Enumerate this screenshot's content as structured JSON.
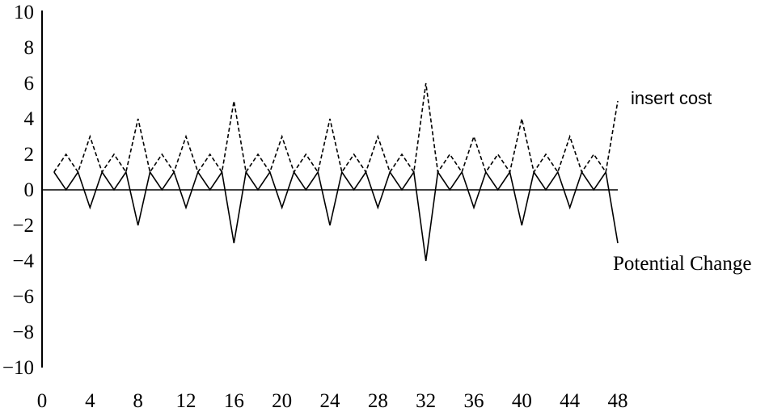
{
  "chart_data": {
    "type": "line",
    "title": "",
    "xlabel": "",
    "ylabel": "",
    "xlim": [
      0,
      48
    ],
    "ylim": [
      -10,
      10
    ],
    "x_ticks": [
      0,
      4,
      8,
      12,
      16,
      20,
      24,
      28,
      32,
      36,
      40,
      44,
      48
    ],
    "y_ticks": [
      10,
      8,
      6,
      4,
      2,
      0,
      -2,
      -4,
      -6,
      -8,
      -10
    ],
    "x_tick_labels": [
      "0",
      "4",
      "8",
      "12",
      "16",
      "20",
      "24",
      "28",
      "32",
      "36",
      "40",
      "44",
      "48"
    ],
    "y_tick_labels": [
      "10",
      "8",
      "6",
      "4",
      "2",
      "0",
      "−2",
      "−4",
      "−6",
      "−8",
      "−10"
    ],
    "grid": false,
    "legend": "none",
    "x": [
      1,
      2,
      3,
      4,
      5,
      6,
      7,
      8,
      9,
      10,
      11,
      12,
      13,
      14,
      15,
      16,
      17,
      18,
      19,
      20,
      21,
      22,
      23,
      24,
      25,
      26,
      27,
      28,
      29,
      30,
      31,
      32,
      33,
      34,
      35,
      36,
      37,
      38,
      39,
      40,
      41,
      42,
      43,
      44,
      45,
      46,
      47,
      48
    ],
    "series": [
      {
        "name": "insert cost",
        "style": "dashed",
        "values": [
          1,
          2,
          1,
          3,
          1,
          2,
          1,
          4,
          1,
          2,
          1,
          3,
          1,
          2,
          1,
          5,
          1,
          2,
          1,
          3,
          1,
          2,
          1,
          4,
          1,
          2,
          1,
          3,
          1,
          2,
          1,
          6,
          1,
          2,
          1,
          3,
          1,
          2,
          1,
          4,
          1,
          2,
          1,
          3,
          1,
          2,
          1,
          5
        ]
      },
      {
        "name": "Potential Change",
        "style": "solid",
        "values": [
          1,
          0,
          1,
          -1,
          1,
          0,
          1,
          -2,
          1,
          0,
          1,
          -1,
          1,
          0,
          1,
          -3,
          1,
          0,
          1,
          -1,
          1,
          0,
          1,
          -2,
          1,
          0,
          1,
          -1,
          1,
          0,
          1,
          -4,
          1,
          0,
          1,
          -1,
          1,
          0,
          1,
          -2,
          1,
          0,
          1,
          -1,
          1,
          0,
          1,
          -3
        ]
      }
    ]
  }
}
